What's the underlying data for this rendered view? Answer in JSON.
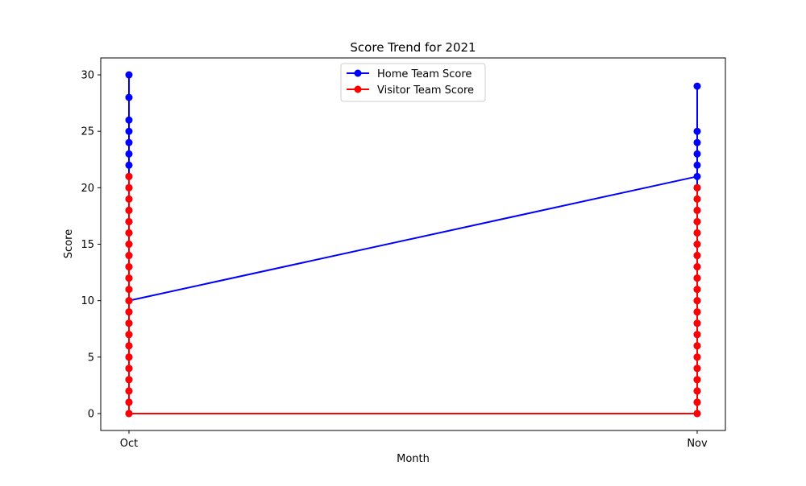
{
  "chart_data": {
    "type": "line",
    "title": "Score Trend for 2021",
    "xlabel": "Month",
    "ylabel": "Score",
    "categories": [
      "Oct",
      "Nov"
    ],
    "ylim": [
      -1.5,
      31.5
    ],
    "yticks": [
      0,
      5,
      10,
      15,
      20,
      25,
      30
    ],
    "grid": false,
    "legend_position": "top-center",
    "series": [
      {
        "name": "Home Team Score",
        "color": "#0000ff",
        "points": [
          {
            "x": "Oct",
            "y": 0
          },
          {
            "x": "Oct",
            "y": 1
          },
          {
            "x": "Oct",
            "y": 2
          },
          {
            "x": "Oct",
            "y": 3
          },
          {
            "x": "Oct",
            "y": 4
          },
          {
            "x": "Oct",
            "y": 5
          },
          {
            "x": "Oct",
            "y": 6
          },
          {
            "x": "Oct",
            "y": 7
          },
          {
            "x": "Oct",
            "y": 8
          },
          {
            "x": "Oct",
            "y": 9
          },
          {
            "x": "Oct",
            "y": 11
          },
          {
            "x": "Oct",
            "y": 12
          },
          {
            "x": "Oct",
            "y": 13
          },
          {
            "x": "Oct",
            "y": 14
          },
          {
            "x": "Oct",
            "y": 15
          },
          {
            "x": "Oct",
            "y": 16
          },
          {
            "x": "Oct",
            "y": 17
          },
          {
            "x": "Oct",
            "y": 18
          },
          {
            "x": "Oct",
            "y": 19
          },
          {
            "x": "Oct",
            "y": 20
          },
          {
            "x": "Oct",
            "y": 21
          },
          {
            "x": "Oct",
            "y": 22
          },
          {
            "x": "Oct",
            "y": 23
          },
          {
            "x": "Oct",
            "y": 24
          },
          {
            "x": "Oct",
            "y": 25
          },
          {
            "x": "Oct",
            "y": 26
          },
          {
            "x": "Oct",
            "y": 28
          },
          {
            "x": "Oct",
            "y": 30
          },
          {
            "x": "Oct",
            "y": 10
          },
          {
            "x": "Nov",
            "y": 21
          },
          {
            "x": "Nov",
            "y": 0
          },
          {
            "x": "Nov",
            "y": 1
          },
          {
            "x": "Nov",
            "y": 2
          },
          {
            "x": "Nov",
            "y": 3
          },
          {
            "x": "Nov",
            "y": 4
          },
          {
            "x": "Nov",
            "y": 5
          },
          {
            "x": "Nov",
            "y": 6
          },
          {
            "x": "Nov",
            "y": 7
          },
          {
            "x": "Nov",
            "y": 8
          },
          {
            "x": "Nov",
            "y": 9
          },
          {
            "x": "Nov",
            "y": 10
          },
          {
            "x": "Nov",
            "y": 11
          },
          {
            "x": "Nov",
            "y": 12
          },
          {
            "x": "Nov",
            "y": 13
          },
          {
            "x": "Nov",
            "y": 14
          },
          {
            "x": "Nov",
            "y": 15
          },
          {
            "x": "Nov",
            "y": 16
          },
          {
            "x": "Nov",
            "y": 17
          },
          {
            "x": "Nov",
            "y": 18
          },
          {
            "x": "Nov",
            "y": 19
          },
          {
            "x": "Nov",
            "y": 20
          },
          {
            "x": "Nov",
            "y": 22
          },
          {
            "x": "Nov",
            "y": 23
          },
          {
            "x": "Nov",
            "y": 24
          },
          {
            "x": "Nov",
            "y": 25
          },
          {
            "x": "Nov",
            "y": 29
          }
        ]
      },
      {
        "name": "Visitor Team Score",
        "color": "#ff0000",
        "points": [
          {
            "x": "Oct",
            "y": 21
          },
          {
            "x": "Oct",
            "y": 20
          },
          {
            "x": "Oct",
            "y": 19
          },
          {
            "x": "Oct",
            "y": 18
          },
          {
            "x": "Oct",
            "y": 17
          },
          {
            "x": "Oct",
            "y": 16
          },
          {
            "x": "Oct",
            "y": 15
          },
          {
            "x": "Oct",
            "y": 14
          },
          {
            "x": "Oct",
            "y": 13
          },
          {
            "x": "Oct",
            "y": 12
          },
          {
            "x": "Oct",
            "y": 11
          },
          {
            "x": "Oct",
            "y": 10
          },
          {
            "x": "Oct",
            "y": 9
          },
          {
            "x": "Oct",
            "y": 8
          },
          {
            "x": "Oct",
            "y": 7
          },
          {
            "x": "Oct",
            "y": 6
          },
          {
            "x": "Oct",
            "y": 5
          },
          {
            "x": "Oct",
            "y": 4
          },
          {
            "x": "Oct",
            "y": 3
          },
          {
            "x": "Oct",
            "y": 2
          },
          {
            "x": "Oct",
            "y": 1
          },
          {
            "x": "Oct",
            "y": 0
          },
          {
            "x": "Nov",
            "y": 0
          },
          {
            "x": "Nov",
            "y": 1
          },
          {
            "x": "Nov",
            "y": 2
          },
          {
            "x": "Nov",
            "y": 3
          },
          {
            "x": "Nov",
            "y": 4
          },
          {
            "x": "Nov",
            "y": 5
          },
          {
            "x": "Nov",
            "y": 6
          },
          {
            "x": "Nov",
            "y": 7
          },
          {
            "x": "Nov",
            "y": 8
          },
          {
            "x": "Nov",
            "y": 9
          },
          {
            "x": "Nov",
            "y": 10
          },
          {
            "x": "Nov",
            "y": 11
          },
          {
            "x": "Nov",
            "y": 12
          },
          {
            "x": "Nov",
            "y": 13
          },
          {
            "x": "Nov",
            "y": 14
          },
          {
            "x": "Nov",
            "y": 15
          },
          {
            "x": "Nov",
            "y": 16
          },
          {
            "x": "Nov",
            "y": 17
          },
          {
            "x": "Nov",
            "y": 18
          },
          {
            "x": "Nov",
            "y": 19
          },
          {
            "x": "Nov",
            "y": 20
          }
        ]
      }
    ]
  }
}
